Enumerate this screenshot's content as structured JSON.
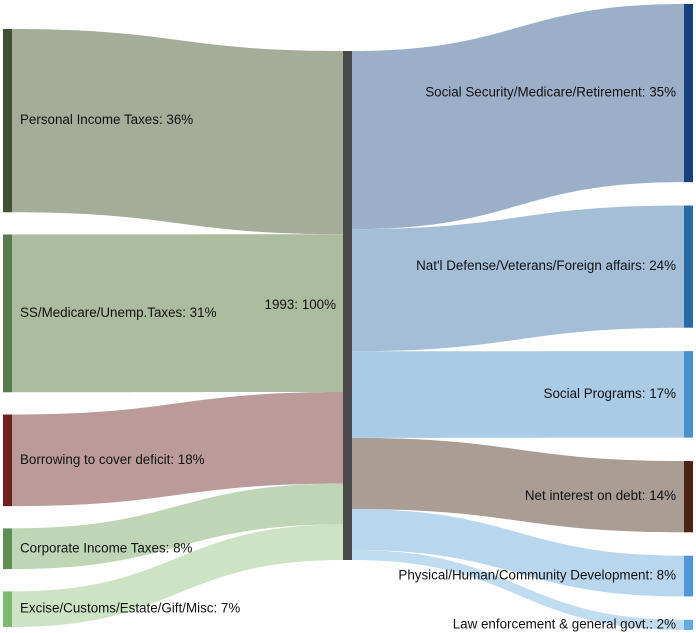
{
  "chart_data": {
    "type": "sankey",
    "title": "",
    "units": "percent of 1993 budget",
    "sources": [
      {
        "id": "personal-income-taxes",
        "label": "Personal Income Taxes: 36%",
        "value": 36,
        "color": "#3f5233",
        "flow_color": "#a5ad99"
      },
      {
        "id": "ss-medicare-unemp-taxes",
        "label": "SS/Medicare/Unemp.Taxes: 31%",
        "value": 31,
        "color": "#587a4c",
        "flow_color": "#acbc9f"
      },
      {
        "id": "borrowing-deficit",
        "label": "Borrowing to cover deficit: 18%",
        "value": 18,
        "color": "#6e1f1f",
        "flow_color": "#bb9b9a"
      },
      {
        "id": "corporate-income-taxes",
        "label": "Corporate Income Taxes: 8%",
        "value": 8,
        "color": "#5f8f55",
        "flow_color": "#bed6b6"
      },
      {
        "id": "excise-customs-misc",
        "label": "Excise/Customs/Estate/Gift/Misc: 7%",
        "value": 7,
        "color": "#7cba70",
        "flow_color": "#cce4c3"
      }
    ],
    "center": {
      "id": "budget-1993",
      "label": "1993: 100%",
      "value": 100,
      "color": "#4a4a4a"
    },
    "targets": [
      {
        "id": "social-security-medicare",
        "label": "Social Security/Medicare/Retirement: 35%",
        "value": 35,
        "color": "#16407e",
        "flow_color": "#9cafc8"
      },
      {
        "id": "defense-veterans-foreign",
        "label": "Nat'l Defense/Veterans/Foreign affairs: 24%",
        "value": 24,
        "color": "#2a6aa3",
        "flow_color": "#a5bed8"
      },
      {
        "id": "social-programs",
        "label": "Social Programs: 17%",
        "value": 17,
        "color": "#4a91cc",
        "flow_color": "#a9cbe5"
      },
      {
        "id": "net-interest",
        "label": "Net interest on debt: 14%",
        "value": 14,
        "color": "#4a2515",
        "flow_color": "#aa9d93"
      },
      {
        "id": "physical-human-community",
        "label": "Physical/Human/Community Development: 8%",
        "value": 8,
        "color": "#4f97d6",
        "flow_color": "#b8d6ee"
      },
      {
        "id": "law-enforcement-govt",
        "label": "Law enforcement & general govt.: 2%",
        "value": 2,
        "color": "#64a9e2",
        "flow_color": "#c0dcf1"
      }
    ]
  }
}
